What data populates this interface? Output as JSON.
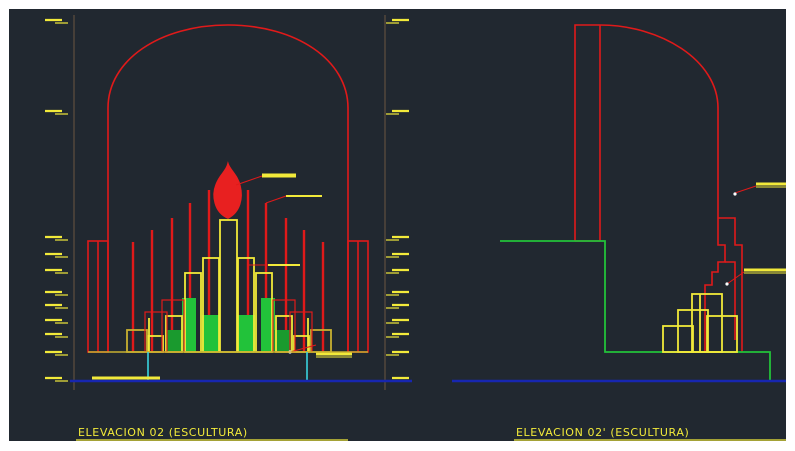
{
  "drawing": {
    "background": "#212830",
    "colors": {
      "red": "#e01a1a",
      "yellow": "#f2ea3a",
      "green": "#22c23a",
      "blue": "#1726b0",
      "cyan": "#39d4e0",
      "white": "#ffffff"
    },
    "titles": {
      "left": "ELEVACION  02  (ESCULTURA)",
      "right": "ELEVACION  02'  (ESCULTURA)"
    }
  }
}
